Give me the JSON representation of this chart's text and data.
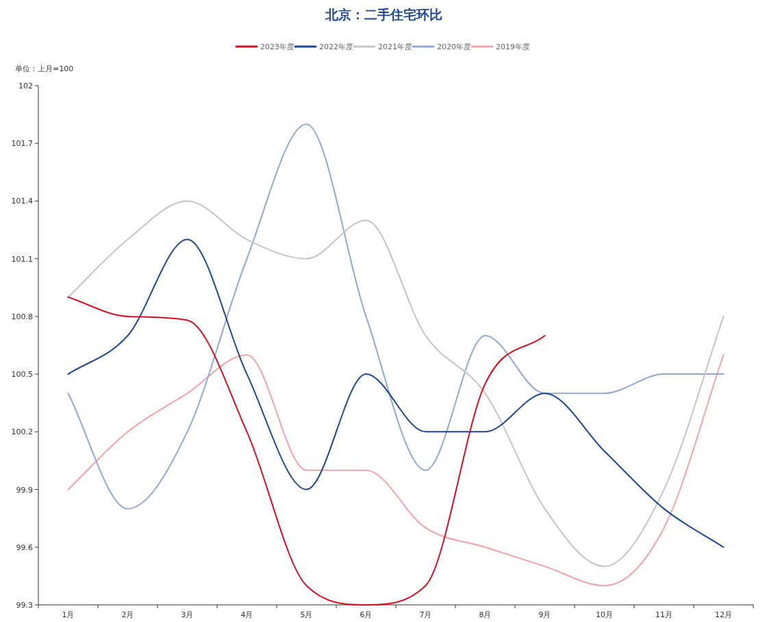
{
  "chart_data": {
    "type": "line",
    "title": "北京：二手住宅环比",
    "annotations": [
      "单位：上月=100"
    ],
    "categories": [
      "1月",
      "2月",
      "3月",
      "4月",
      "5月",
      "6月",
      "7月",
      "8月",
      "9月",
      "10月",
      "11月",
      "12月"
    ],
    "ylim": [
      99.3,
      102
    ],
    "yticks": [
      99.3,
      99.6,
      99.9,
      100.2,
      100.5,
      100.8,
      101.1,
      101.4,
      101.7,
      102
    ],
    "legend": "top",
    "grid": false,
    "series": [
      {
        "name": "2023年度",
        "color": "#cc1122",
        "values": [
          100.9,
          100.8,
          100.78,
          100.2,
          99.4,
          99.3,
          99.4,
          100.45,
          100.7,
          null,
          null,
          null
        ]
      },
      {
        "name": "2022年度",
        "color": "#1b4594",
        "values": [
          100.5,
          100.7,
          101.2,
          100.5,
          99.9,
          100.5,
          100.2,
          100.2,
          100.4,
          100.1,
          99.8,
          99.6
        ]
      },
      {
        "name": "2021年度",
        "color": "#c4c4c4",
        "values": [
          100.9,
          101.2,
          101.4,
          101.2,
          101.1,
          101.3,
          100.7,
          100.4,
          99.8,
          99.5,
          99.9,
          100.8
        ]
      },
      {
        "name": "2020年度",
        "color": "#91a7d0",
        "values": [
          100.4,
          99.8,
          100.2,
          101.1,
          101.8,
          100.8,
          100.0,
          100.7,
          100.4,
          100.4,
          100.5,
          100.5
        ]
      },
      {
        "name": "2019年度",
        "color": "#f4a0ab",
        "values": [
          99.9,
          100.2,
          100.4,
          100.6,
          100.0,
          100.0,
          99.7,
          99.6,
          99.5,
          99.4,
          99.7,
          100.6
        ]
      }
    ]
  }
}
